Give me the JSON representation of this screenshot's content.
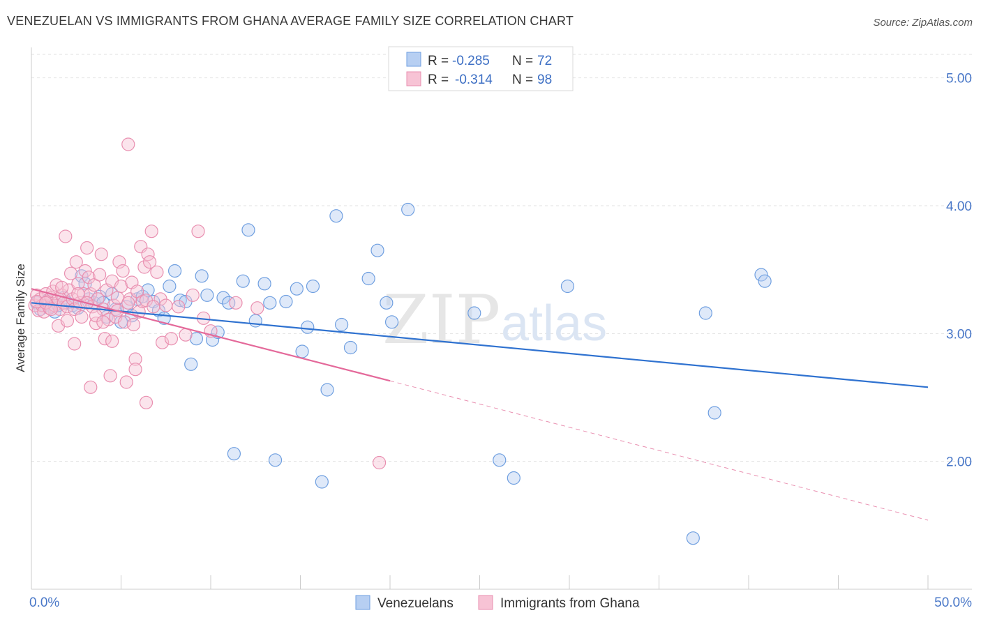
{
  "title": "VENEZUELAN VS IMMIGRANTS FROM GHANA AVERAGE FAMILY SIZE CORRELATION CHART",
  "source": "Source: ZipAtlas.com",
  "watermark": {
    "zip": "ZIP",
    "atlas": "atlas"
  },
  "colors": {
    "blue": "#6f9fe0",
    "blue_fill": "#b7cff2",
    "pink": "#e98fb0",
    "pink_fill": "#f7c3d5",
    "blue_line": "#2f72d0",
    "pink_line": "#e4699a"
  },
  "legend": {
    "r_label": "R =",
    "n_label": "N =",
    "rows": [
      {
        "r": "-0.285",
        "n": "72"
      },
      {
        "r": "-0.314",
        "n": "98"
      }
    ]
  },
  "chart_data": {
    "type": "scatter",
    "ylabel": "Average Family Size",
    "xlim": [
      0,
      50
    ],
    "ylim": [
      1.0,
      5.2
    ],
    "x_tick_labels": [
      "0.0%",
      "50.0%"
    ],
    "y_ticks": [
      2.0,
      3.0,
      4.0,
      5.0
    ],
    "y_tick_labels": [
      "2.00",
      "3.00",
      "4.00",
      "5.00"
    ],
    "grid": true,
    "series": [
      {
        "name": "Venezuelans",
        "trend": {
          "x0": 0,
          "y0": 3.24,
          "x1": 50,
          "y1": 2.58
        },
        "points": [
          [
            0.3,
            3.24
          ],
          [
            0.5,
            3.19
          ],
          [
            0.7,
            3.22
          ],
          [
            0.9,
            3.26
          ],
          [
            1.1,
            3.21
          ],
          [
            1.3,
            3.17
          ],
          [
            1.5,
            3.22
          ],
          [
            1.8,
            3.28
          ],
          [
            2.0,
            3.24
          ],
          [
            2.3,
            3.22
          ],
          [
            2.6,
            3.2
          ],
          [
            2.8,
            3.45
          ],
          [
            3.0,
            3.39
          ],
          [
            3.2,
            3.27
          ],
          [
            3.5,
            3.24
          ],
          [
            3.8,
            3.29
          ],
          [
            4.0,
            3.24
          ],
          [
            4.2,
            3.13
          ],
          [
            4.5,
            3.31
          ],
          [
            4.7,
            3.19
          ],
          [
            5.0,
            3.09
          ],
          [
            5.3,
            3.21
          ],
          [
            5.6,
            3.14
          ],
          [
            5.9,
            3.27
          ],
          [
            6.2,
            3.29
          ],
          [
            6.5,
            3.34
          ],
          [
            6.8,
            3.25
          ],
          [
            7.1,
            3.18
          ],
          [
            7.4,
            3.12
          ],
          [
            7.7,
            3.37
          ],
          [
            8.0,
            3.49
          ],
          [
            8.3,
            3.26
          ],
          [
            8.6,
            3.25
          ],
          [
            8.9,
            2.76
          ],
          [
            9.2,
            2.96
          ],
          [
            9.5,
            3.45
          ],
          [
            9.8,
            3.3
          ],
          [
            10.1,
            2.95
          ],
          [
            10.4,
            3.01
          ],
          [
            10.7,
            3.28
          ],
          [
            11.0,
            3.24
          ],
          [
            11.3,
            2.06
          ],
          [
            11.8,
            3.41
          ],
          [
            12.1,
            3.81
          ],
          [
            12.5,
            3.1
          ],
          [
            13.0,
            3.39
          ],
          [
            13.3,
            3.24
          ],
          [
            13.6,
            2.01
          ],
          [
            14.2,
            3.25
          ],
          [
            14.8,
            3.35
          ],
          [
            15.1,
            2.86
          ],
          [
            15.4,
            3.05
          ],
          [
            15.7,
            3.37
          ],
          [
            16.2,
            1.84
          ],
          [
            16.5,
            2.56
          ],
          [
            17.0,
            3.92
          ],
          [
            17.3,
            3.07
          ],
          [
            17.8,
            2.89
          ],
          [
            18.8,
            3.43
          ],
          [
            19.3,
            3.65
          ],
          [
            19.8,
            3.24
          ],
          [
            20.1,
            3.09
          ],
          [
            21.0,
            3.97
          ],
          [
            24.7,
            3.16
          ],
          [
            26.1,
            2.01
          ],
          [
            26.9,
            1.87
          ],
          [
            29.9,
            3.37
          ],
          [
            36.9,
            1.4
          ],
          [
            37.6,
            3.16
          ],
          [
            38.1,
            2.38
          ],
          [
            40.7,
            3.46
          ],
          [
            40.9,
            3.41
          ]
        ]
      },
      {
        "name": "Immigrants from Ghana",
        "trend": {
          "x0": 0,
          "y0": 3.35,
          "x1": 20,
          "y1": 2.63,
          "dash_x1": 50,
          "dash_y1": 1.54
        },
        "points": [
          [
            0.2,
            3.22
          ],
          [
            0.3,
            3.3
          ],
          [
            0.4,
            3.18
          ],
          [
            0.5,
            3.27
          ],
          [
            0.6,
            3.22
          ],
          [
            0.7,
            3.17
          ],
          [
            0.8,
            3.31
          ],
          [
            0.9,
            3.25
          ],
          [
            1.0,
            3.2
          ],
          [
            1.1,
            3.28
          ],
          [
            1.2,
            3.33
          ],
          [
            1.3,
            3.22
          ],
          [
            1.4,
            3.38
          ],
          [
            1.5,
            3.27
          ],
          [
            1.6,
            3.19
          ],
          [
            1.7,
            3.3
          ],
          [
            1.8,
            3.24
          ],
          [
            1.9,
            3.76
          ],
          [
            2.0,
            3.21
          ],
          [
            2.1,
            3.34
          ],
          [
            2.2,
            3.47
          ],
          [
            2.3,
            3.27
          ],
          [
            2.4,
            3.19
          ],
          [
            2.5,
            3.56
          ],
          [
            2.6,
            3.39
          ],
          [
            2.7,
            3.24
          ],
          [
            2.8,
            3.13
          ],
          [
            2.9,
            3.31
          ],
          [
            3.0,
            3.49
          ],
          [
            3.1,
            3.67
          ],
          [
            3.2,
            3.44
          ],
          [
            3.3,
            3.31
          ],
          [
            3.4,
            3.21
          ],
          [
            3.5,
            3.38
          ],
          [
            3.6,
            3.08
          ],
          [
            3.7,
            3.27
          ],
          [
            3.8,
            3.46
          ],
          [
            3.9,
            3.62
          ],
          [
            4.0,
            3.19
          ],
          [
            4.1,
            2.96
          ],
          [
            4.2,
            3.34
          ],
          [
            4.3,
            3.11
          ],
          [
            4.4,
            2.67
          ],
          [
            4.5,
            3.41
          ],
          [
            4.6,
            3.22
          ],
          [
            4.7,
            3.13
          ],
          [
            4.8,
            3.28
          ],
          [
            4.9,
            3.56
          ],
          [
            5.0,
            3.37
          ],
          [
            5.1,
            3.49
          ],
          [
            5.2,
            3.09
          ],
          [
            5.3,
            2.62
          ],
          [
            5.4,
            4.48
          ],
          [
            5.5,
            3.27
          ],
          [
            5.6,
            3.4
          ],
          [
            5.7,
            3.07
          ],
          [
            5.8,
            2.8
          ],
          [
            5.9,
            3.33
          ],
          [
            6.0,
            3.17
          ],
          [
            6.1,
            3.68
          ],
          [
            6.2,
            3.25
          ],
          [
            6.3,
            3.52
          ],
          [
            6.4,
            2.46
          ],
          [
            6.5,
            3.62
          ],
          [
            6.6,
            3.56
          ],
          [
            6.7,
            3.8
          ],
          [
            7.0,
            3.48
          ],
          [
            7.2,
            3.27
          ],
          [
            7.5,
            3.22
          ],
          [
            0.3,
            3.25
          ],
          [
            0.8,
            3.24
          ],
          [
            1.5,
            3.06
          ],
          [
            2.0,
            3.1
          ],
          [
            2.4,
            2.92
          ],
          [
            3.3,
            2.58
          ],
          [
            3.6,
            3.14
          ],
          [
            4.5,
            2.94
          ],
          [
            5.8,
            2.72
          ],
          [
            6.4,
            3.26
          ],
          [
            6.8,
            3.21
          ],
          [
            7.3,
            2.93
          ],
          [
            7.8,
            2.96
          ],
          [
            8.2,
            3.21
          ],
          [
            8.6,
            2.99
          ],
          [
            9.0,
            3.3
          ],
          [
            9.3,
            3.8
          ],
          [
            9.6,
            3.12
          ],
          [
            10.0,
            3.02
          ],
          [
            11.4,
            3.24
          ],
          [
            12.6,
            3.2
          ],
          [
            1.1,
            3.19
          ],
          [
            1.7,
            3.36
          ],
          [
            2.6,
            3.31
          ],
          [
            3.1,
            3.24
          ],
          [
            4.0,
            3.09
          ],
          [
            4.8,
            3.18
          ],
          [
            5.4,
            3.24
          ],
          [
            19.4,
            1.99
          ]
        ]
      }
    ]
  }
}
